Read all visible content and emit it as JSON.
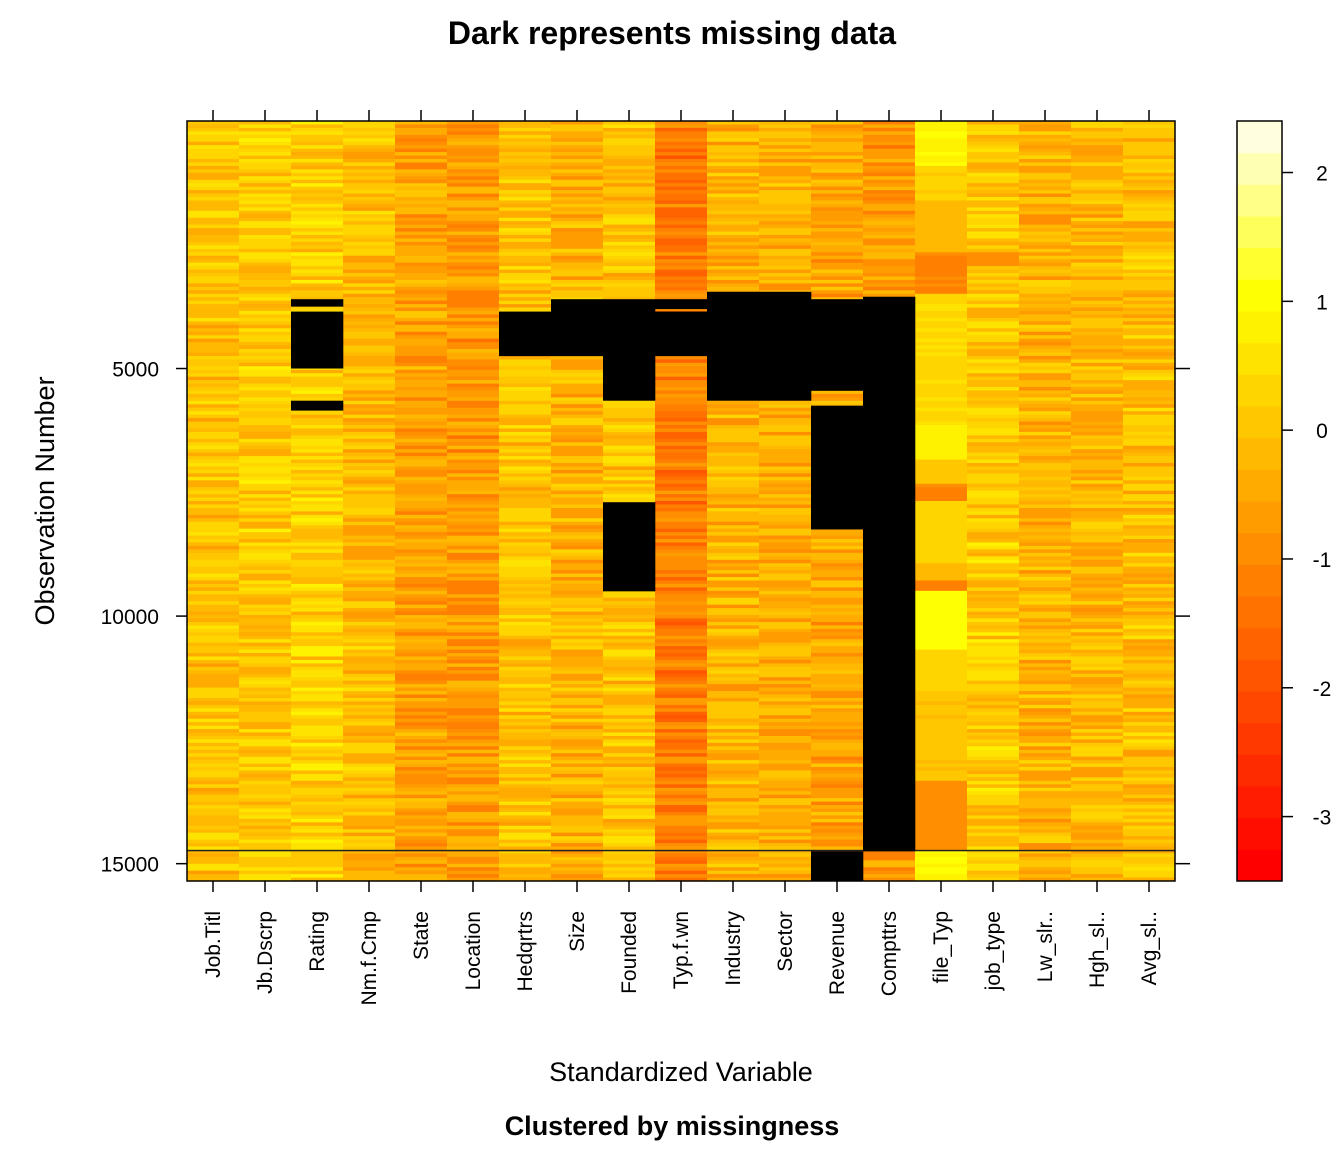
{
  "chart_data": {
    "type": "heatmap",
    "title": "Dark represents missing data",
    "xlabel": "Standardized Variable",
    "subtitle": "Clustered by missingness",
    "ylabel": "Observation Number",
    "variables": [
      "Job.Titl",
      "Jb.Dscrp",
      "Rating",
      "Nm.f.Cmp",
      "State",
      "Location",
      "Hedqrtrs",
      "Size",
      "Founded",
      "Typ.f.wn",
      "Industry",
      "Sector",
      "Revenue",
      "Compttrs",
      "file_Typ",
      "job_type",
      "Lw_slr..",
      "Hgh_sl..",
      "Avg_sl.."
    ],
    "n_observations": 15350,
    "ylim": [
      1,
      15350
    ],
    "y_ticks": [
      5000,
      10000,
      15000
    ],
    "y_tick_labels": [
      "5000",
      "10000",
      "15000"
    ],
    "colorbar": {
      "range": [
        -3.5,
        2.4
      ],
      "ticks": [
        -3,
        -2,
        -1,
        0,
        1,
        2
      ],
      "tick_labels": [
        "-3",
        "-2",
        "-1",
        "0",
        "1",
        "2"
      ],
      "low_color": "#ff0000",
      "high_color": "#ffffe0",
      "missing_color": "#000000"
    },
    "column_base_value": [
      0.0,
      0.1,
      0.2,
      -0.1,
      -0.6,
      -0.7,
      0.0,
      -0.3,
      0.0,
      -1.2,
      -0.3,
      -0.4,
      -0.5,
      -0.7,
      0.3,
      0.1,
      -0.3,
      -0.2,
      -0.1
    ],
    "missing_blocks": [
      {
        "variable": "Rating",
        "from": 3600,
        "to": 3750
      },
      {
        "variable": "Rating",
        "from": 3850,
        "to": 5000
      },
      {
        "variable": "Rating",
        "from": 5650,
        "to": 5850
      },
      {
        "variable": "Hedqrtrs",
        "from": 3850,
        "to": 4750
      },
      {
        "variable": "Size",
        "from": 3600,
        "to": 4750
      },
      {
        "variable": "Founded",
        "from": 3600,
        "to": 5650
      },
      {
        "variable": "Founded",
        "from": 7700,
        "to": 9500
      },
      {
        "variable": "Typ.f.wn",
        "from": 3600,
        "to": 3800
      },
      {
        "variable": "Typ.f.wn",
        "from": 3850,
        "to": 4750
      },
      {
        "variable": "Industry",
        "from": 3450,
        "to": 5650
      },
      {
        "variable": "Sector",
        "from": 3450,
        "to": 5650
      },
      {
        "variable": "Revenue",
        "from": 3600,
        "to": 5450
      },
      {
        "variable": "Revenue",
        "from": 5750,
        "to": 8250
      },
      {
        "variable": "Revenue",
        "from": 14750,
        "to": 15350
      },
      {
        "variable": "Compttrs",
        "from": 3550,
        "to": 14750
      }
    ],
    "band_values": [
      {
        "variable": "file_Typ",
        "from": 1,
        "to": 900,
        "value": 0.9
      },
      {
        "variable": "file_Typ",
        "from": 900,
        "to": 1600,
        "value": 0.2
      },
      {
        "variable": "file_Typ",
        "from": 1600,
        "to": 2650,
        "value": -0.2
      },
      {
        "variable": "file_Typ",
        "from": 2650,
        "to": 3500,
        "value": -1.1
      },
      {
        "variable": "file_Typ",
        "from": 3500,
        "to": 6150,
        "value": 0.4
      },
      {
        "variable": "file_Typ",
        "from": 6150,
        "to": 6850,
        "value": 0.8
      },
      {
        "variable": "file_Typ",
        "from": 6850,
        "to": 7350,
        "value": 0.1
      },
      {
        "variable": "file_Typ",
        "from": 7350,
        "to": 7650,
        "value": -1.1
      },
      {
        "variable": "file_Typ",
        "from": 7650,
        "to": 8900,
        "value": 0.3
      },
      {
        "variable": "file_Typ",
        "from": 8900,
        "to": 9300,
        "value": -0.2
      },
      {
        "variable": "file_Typ",
        "from": 9300,
        "to": 9500,
        "value": -1.1
      },
      {
        "variable": "file_Typ",
        "from": 9500,
        "to": 10700,
        "value": 1.0
      },
      {
        "variable": "file_Typ",
        "from": 10700,
        "to": 11500,
        "value": 0.3
      },
      {
        "variable": "file_Typ",
        "from": 11500,
        "to": 13350,
        "value": 0.0
      },
      {
        "variable": "file_Typ",
        "from": 13350,
        "to": 14750,
        "value": -0.9
      },
      {
        "variable": "file_Typ",
        "from": 14750,
        "to": 15350,
        "value": 0.9
      },
      {
        "variable": "job_type",
        "from": 2650,
        "to": 2950,
        "value": -0.9
      }
    ]
  }
}
